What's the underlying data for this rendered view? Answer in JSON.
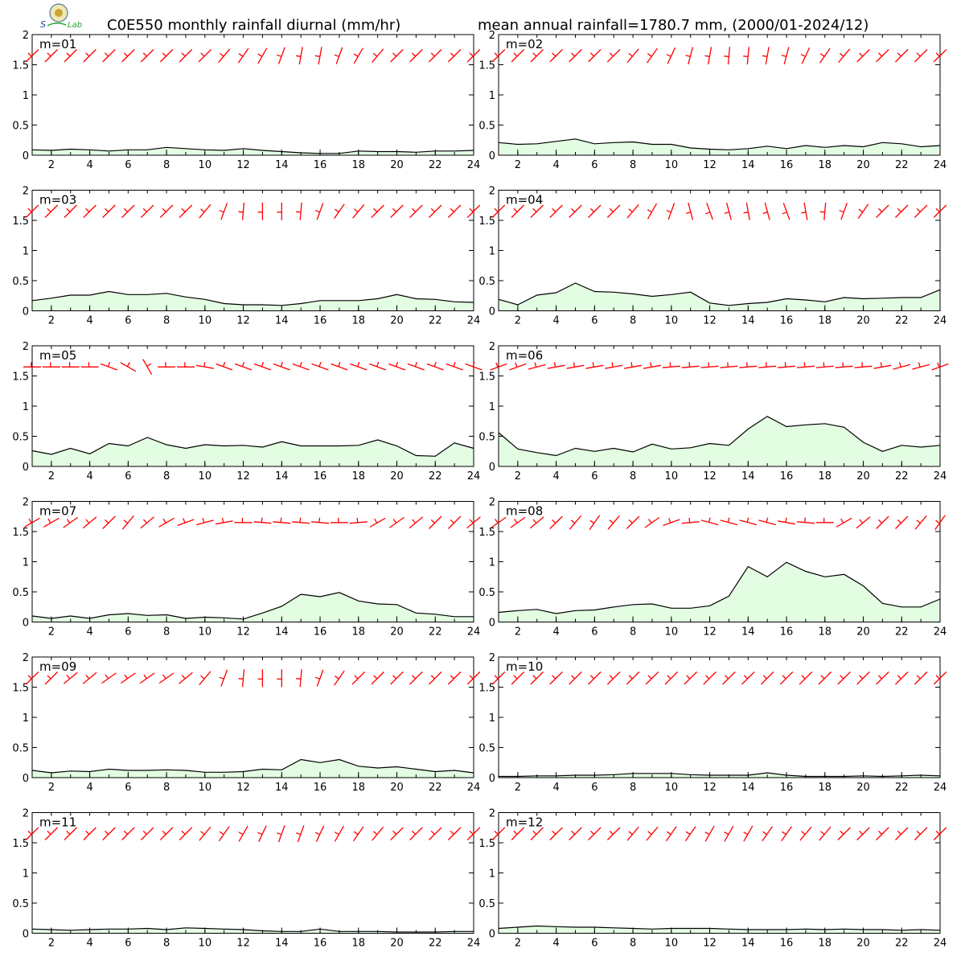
{
  "header": {
    "title_left": "C0E550 monthly rainfall diurnal (mm/hr)",
    "title_right": "mean annual rainfall=1780.7 mm, (2000/01-2024/12)",
    "logo_name": "lab-logo"
  },
  "colors": {
    "fill": "#e3fde3",
    "line": "#000000",
    "wind": "#ff0000",
    "frame": "#000000"
  },
  "chart_data": {
    "type": "area",
    "x": [
      1,
      2,
      3,
      4,
      5,
      6,
      7,
      8,
      9,
      10,
      11,
      12,
      13,
      14,
      15,
      16,
      17,
      18,
      19,
      20,
      21,
      22,
      23,
      24
    ],
    "x_ticks": [
      2,
      4,
      6,
      8,
      10,
      12,
      14,
      16,
      18,
      20,
      22,
      24
    ],
    "y_ticks": [
      0,
      0.5,
      1,
      1.5,
      2
    ],
    "ylim": [
      0,
      2
    ],
    "xlim": [
      1,
      24
    ],
    "grid": false,
    "overlay": "red wind barbs at top of each panel",
    "panels": [
      {
        "label": "m=01",
        "values": [
          0.09,
          0.08,
          0.1,
          0.09,
          0.07,
          0.09,
          0.09,
          0.13,
          0.11,
          0.09,
          0.08,
          0.11,
          0.08,
          0.06,
          0.04,
          0.03,
          0.03,
          0.07,
          0.06,
          0.06,
          0.05,
          0.07,
          0.07,
          0.08
        ],
        "wind_dir": [
          225,
          225,
          225,
          225,
          225,
          225,
          225,
          225,
          225,
          225,
          220,
          215,
          210,
          200,
          190,
          190,
          200,
          210,
          220,
          225,
          225,
          225,
          225,
          225
        ]
      },
      {
        "label": "m=02",
        "values": [
          0.21,
          0.18,
          0.19,
          0.23,
          0.27,
          0.19,
          0.21,
          0.22,
          0.18,
          0.18,
          0.12,
          0.1,
          0.09,
          0.11,
          0.15,
          0.11,
          0.16,
          0.13,
          0.16,
          0.14,
          0.21,
          0.19,
          0.14,
          0.16
        ],
        "wind_dir": [
          225,
          225,
          225,
          225,
          225,
          225,
          225,
          220,
          215,
          205,
          195,
          190,
          185,
          185,
          190,
          195,
          205,
          215,
          220,
          225,
          225,
          225,
          225,
          225
        ]
      },
      {
        "label": "m=03",
        "values": [
          0.17,
          0.21,
          0.26,
          0.26,
          0.32,
          0.27,
          0.27,
          0.29,
          0.23,
          0.19,
          0.12,
          0.1,
          0.1,
          0.09,
          0.12,
          0.17,
          0.17,
          0.17,
          0.2,
          0.27,
          0.2,
          0.19,
          0.15,
          0.14
        ],
        "wind_dir": [
          225,
          225,
          225,
          225,
          225,
          225,
          225,
          225,
          225,
          220,
          200,
          185,
          180,
          180,
          185,
          200,
          215,
          220,
          225,
          225,
          225,
          225,
          225,
          225
        ]
      },
      {
        "label": "m=04",
        "values": [
          0.19,
          0.1,
          0.26,
          0.3,
          0.46,
          0.32,
          0.31,
          0.28,
          0.24,
          0.27,
          0.31,
          0.13,
          0.09,
          0.12,
          0.14,
          0.2,
          0.18,
          0.15,
          0.22,
          0.2,
          0.21,
          0.22,
          0.22,
          0.35
        ],
        "wind_dir": [
          225,
          225,
          225,
          225,
          225,
          225,
          225,
          220,
          210,
          200,
          165,
          160,
          165,
          170,
          165,
          160,
          170,
          185,
          200,
          215,
          225,
          225,
          225,
          225
        ]
      },
      {
        "label": "m=05",
        "values": [
          0.26,
          0.2,
          0.3,
          0.21,
          0.38,
          0.34,
          0.48,
          0.36,
          0.3,
          0.36,
          0.34,
          0.35,
          0.32,
          0.41,
          0.34,
          0.34,
          0.34,
          0.35,
          0.44,
          0.34,
          0.18,
          0.17,
          0.39,
          0.3
        ],
        "wind_dir": [
          270,
          270,
          270,
          270,
          290,
          300,
          330,
          270,
          270,
          280,
          290,
          290,
          290,
          290,
          290,
          290,
          290,
          290,
          290,
          290,
          290,
          290,
          290,
          290
        ]
      },
      {
        "label": "m=06",
        "values": [
          0.56,
          0.29,
          0.23,
          0.18,
          0.3,
          0.25,
          0.3,
          0.24,
          0.37,
          0.29,
          0.31,
          0.38,
          0.35,
          0.62,
          0.83,
          0.66,
          0.69,
          0.71,
          0.65,
          0.4,
          0.25,
          0.35,
          0.32,
          0.35
        ],
        "wind_dir": [
          250,
          250,
          255,
          260,
          260,
          260,
          260,
          260,
          260,
          265,
          265,
          265,
          265,
          265,
          265,
          265,
          265,
          265,
          265,
          265,
          260,
          255,
          255,
          250
        ]
      },
      {
        "label": "m=07",
        "values": [
          0.1,
          0.06,
          0.1,
          0.06,
          0.12,
          0.14,
          0.11,
          0.12,
          0.06,
          0.08,
          0.07,
          0.05,
          0.15,
          0.26,
          0.46,
          0.42,
          0.49,
          0.35,
          0.3,
          0.29,
          0.15,
          0.13,
          0.09,
          0.09
        ],
        "wind_dir": [
          240,
          240,
          235,
          230,
          225,
          220,
          230,
          240,
          250,
          255,
          260,
          270,
          275,
          275,
          275,
          275,
          270,
          265,
          240,
          235,
          230,
          225,
          225,
          230
        ]
      },
      {
        "label": "m=08",
        "values": [
          0.16,
          0.19,
          0.21,
          0.14,
          0.19,
          0.2,
          0.25,
          0.29,
          0.3,
          0.23,
          0.23,
          0.27,
          0.43,
          0.92,
          0.75,
          0.99,
          0.84,
          0.75,
          0.79,
          0.6,
          0.31,
          0.25,
          0.25,
          0.38
        ],
        "wind_dir": [
          235,
          235,
          230,
          225,
          220,
          215,
          220,
          225,
          235,
          250,
          265,
          285,
          285,
          285,
          285,
          280,
          275,
          270,
          240,
          230,
          225,
          225,
          220,
          215
        ]
      },
      {
        "label": "m=09",
        "values": [
          0.12,
          0.08,
          0.11,
          0.1,
          0.14,
          0.12,
          0.12,
          0.13,
          0.12,
          0.09,
          0.09,
          0.1,
          0.14,
          0.13,
          0.3,
          0.25,
          0.3,
          0.19,
          0.16,
          0.18,
          0.14,
          0.1,
          0.12,
          0.08
        ],
        "wind_dir": [
          225,
          225,
          230,
          230,
          235,
          235,
          235,
          235,
          230,
          220,
          200,
          185,
          180,
          180,
          185,
          200,
          215,
          225,
          225,
          225,
          225,
          225,
          225,
          225
        ]
      },
      {
        "label": "m=10",
        "values": [
          0.02,
          0.02,
          0.03,
          0.03,
          0.04,
          0.04,
          0.05,
          0.07,
          0.07,
          0.07,
          0.05,
          0.04,
          0.04,
          0.04,
          0.08,
          0.04,
          0.02,
          0.02,
          0.02,
          0.03,
          0.02,
          0.03,
          0.04,
          0.03
        ],
        "wind_dir": [
          225,
          225,
          225,
          225,
          225,
          225,
          225,
          225,
          225,
          225,
          225,
          225,
          225,
          225,
          225,
          225,
          225,
          225,
          225,
          225,
          225,
          225,
          225,
          225
        ]
      },
      {
        "label": "m=11",
        "values": [
          0.07,
          0.06,
          0.05,
          0.06,
          0.07,
          0.07,
          0.08,
          0.06,
          0.09,
          0.08,
          0.07,
          0.06,
          0.04,
          0.03,
          0.03,
          0.07,
          0.03,
          0.03,
          0.03,
          0.02,
          0.02,
          0.02,
          0.03,
          0.03
        ],
        "wind_dir": [
          225,
          225,
          225,
          225,
          225,
          225,
          225,
          225,
          225,
          220,
          215,
          210,
          205,
          200,
          200,
          205,
          210,
          215,
          220,
          225,
          225,
          225,
          225,
          225
        ]
      },
      {
        "label": "m=12",
        "values": [
          0.08,
          0.1,
          0.12,
          0.11,
          0.1,
          0.1,
          0.09,
          0.08,
          0.07,
          0.08,
          0.08,
          0.08,
          0.07,
          0.06,
          0.06,
          0.06,
          0.07,
          0.06,
          0.07,
          0.06,
          0.06,
          0.05,
          0.06,
          0.05
        ],
        "wind_dir": [
          225,
          225,
          225,
          225,
          225,
          225,
          225,
          220,
          220,
          215,
          215,
          210,
          210,
          210,
          215,
          215,
          220,
          220,
          225,
          225,
          225,
          225,
          225,
          225
        ]
      }
    ]
  }
}
